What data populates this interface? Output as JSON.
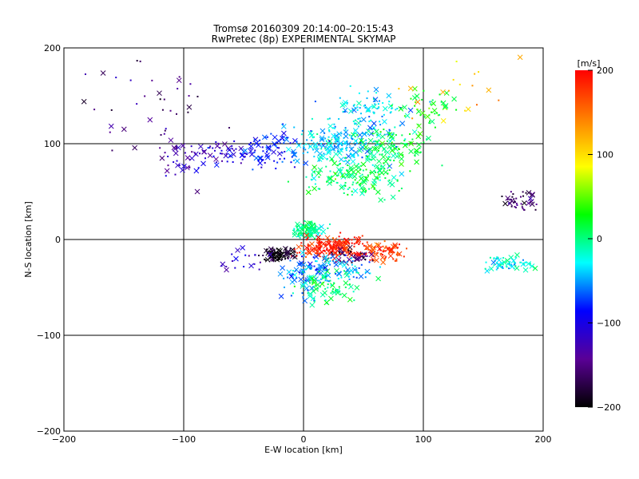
{
  "chart_data": {
    "type": "scatter",
    "title": "Tromsø 20160309 20:14:00–20:15:43",
    "subtitle": "RwPretec (8p) EXPERIMENTAL SKYMAP",
    "xlabel": "E-W location [km]",
    "ylabel": "N-S location [km]",
    "xlim": [
      -200,
      200
    ],
    "ylim": [
      -200,
      200
    ],
    "xticks": [
      -200,
      -100,
      0,
      100,
      200
    ],
    "yticks": [
      -200,
      -100,
      0,
      100,
      200
    ],
    "grid": true,
    "colorbar": {
      "label": "[m/s]",
      "min": -200,
      "max": 200,
      "ticks": [
        -200,
        -100,
        0,
        100,
        200
      ],
      "colormap": [
        "#000000",
        "#5a0096",
        "#0000ff",
        "#00ffff",
        "#00ff00",
        "#ffff00",
        "#ff7f00",
        "#ff0000"
      ]
    },
    "clusters": [
      {
        "x": -70,
        "y": 90,
        "sx": 25,
        "sy": 10,
        "v": -110,
        "n": 70
      },
      {
        "x": -105,
        "y": 80,
        "sx": 15,
        "sy": 20,
        "v": -135,
        "n": 25
      },
      {
        "x": -25,
        "y": 95,
        "sx": 15,
        "sy": 15,
        "v": -85,
        "n": 70
      },
      {
        "x": 30,
        "y": 100,
        "sx": 30,
        "sy": 15,
        "v": -40,
        "n": 200
      },
      {
        "x": 55,
        "y": 135,
        "sx": 25,
        "sy": 15,
        "v": -35,
        "n": 90
      },
      {
        "x": 75,
        "y": 95,
        "sx": 20,
        "sy": 15,
        "v": 15,
        "n": 110
      },
      {
        "x": 100,
        "y": 135,
        "sx": 15,
        "sy": 15,
        "v": 25,
        "n": 45
      },
      {
        "x": 40,
        "y": 65,
        "sx": 30,
        "sy": 15,
        "v": 5,
        "n": 150
      },
      {
        "x": 5,
        "y": 10,
        "sx": 10,
        "sy": 6,
        "v": -5,
        "n": 100
      },
      {
        "x": 25,
        "y": -8,
        "sx": 20,
        "sy": 8,
        "v": 185,
        "n": 180
      },
      {
        "x": 65,
        "y": -12,
        "sx": 12,
        "sy": 8,
        "v": 175,
        "n": 70
      },
      {
        "x": 40,
        "y": -18,
        "sx": 15,
        "sy": 6,
        "v": -160,
        "n": 40
      },
      {
        "x": -20,
        "y": -15,
        "sx": 10,
        "sy": 5,
        "v": -195,
        "n": 90
      },
      {
        "x": 0,
        "y": -35,
        "sx": 15,
        "sy": 15,
        "v": -60,
        "n": 70
      },
      {
        "x": 20,
        "y": -50,
        "sx": 20,
        "sy": 15,
        "v": 5,
        "n": 80
      },
      {
        "x": 30,
        "y": -30,
        "sx": 25,
        "sy": 10,
        "v": -50,
        "n": 70
      },
      {
        "x": 170,
        "y": -25,
        "sx": 15,
        "sy": 6,
        "v": -25,
        "n": 60
      },
      {
        "x": 180,
        "y": 40,
        "sx": 12,
        "sy": 8,
        "v": -160,
        "n": 40
      },
      {
        "x": -50,
        "y": -20,
        "sx": 20,
        "sy": 10,
        "v": -110,
        "n": 20
      },
      {
        "x": -130,
        "y": 140,
        "sx": 40,
        "sy": 40,
        "v": -150,
        "n": 40
      },
      {
        "x": 130,
        "y": 160,
        "sx": 40,
        "sy": 30,
        "v": 120,
        "n": 20
      }
    ]
  }
}
